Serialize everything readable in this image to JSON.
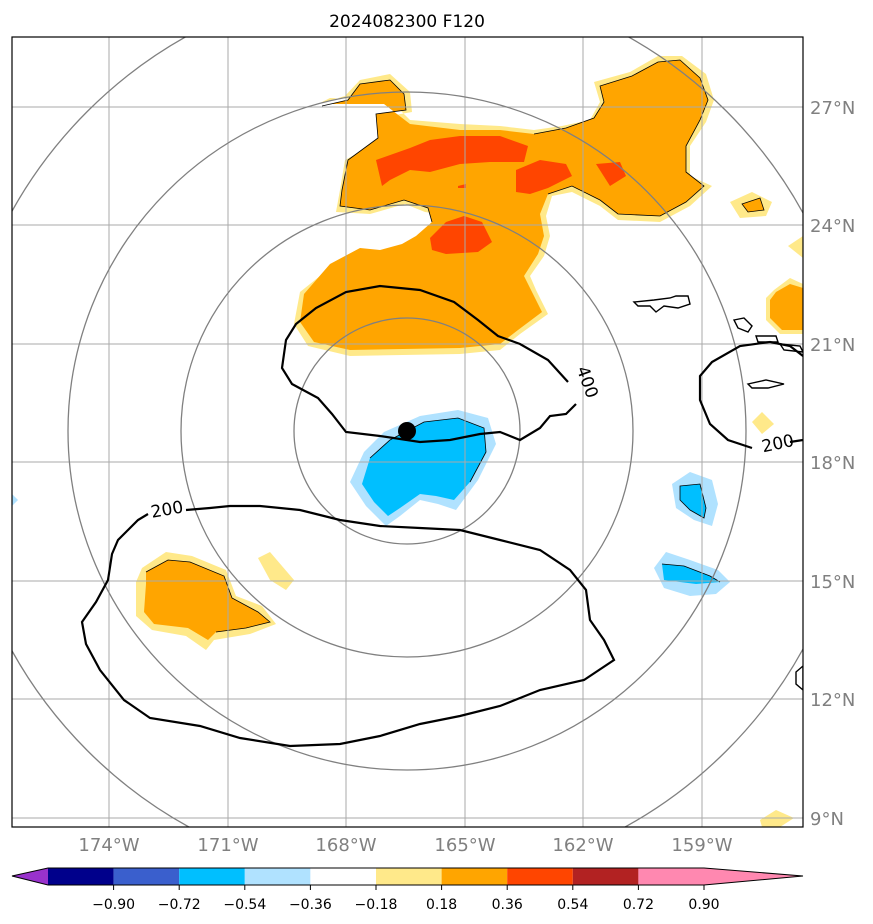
{
  "title": "2024082300 F120",
  "lon_labels": [
    "174°W",
    "171°W",
    "168°W",
    "165°W",
    "162°W",
    "159°W"
  ],
  "lat_labels": [
    "27°N",
    "24°N",
    "21°N",
    "18°N",
    "15°N",
    "12°N",
    "9°N"
  ],
  "contour_labels": {
    "c400": "400",
    "c200_west": "200",
    "c200_east": "200"
  },
  "colorbar": {
    "colors": [
      "#9932cc",
      "#00008b",
      "#3a5fcd",
      "#00bfff",
      "#b0e2ff",
      "#ffffff",
      "#ffe98a",
      "#ffa500",
      "#ff4500",
      "#b22222",
      "#ff88b0"
    ],
    "tick_labels": [
      "−0.90",
      "−0.72",
      "−0.54",
      "−0.36",
      "−0.18",
      "0.18",
      "0.36",
      "0.54",
      "0.72",
      "0.90"
    ]
  },
  "colors": {
    "grid": "#aaaaaa",
    "rings": "#808080",
    "contour": "#000000",
    "tick_text": "#808080"
  }
}
